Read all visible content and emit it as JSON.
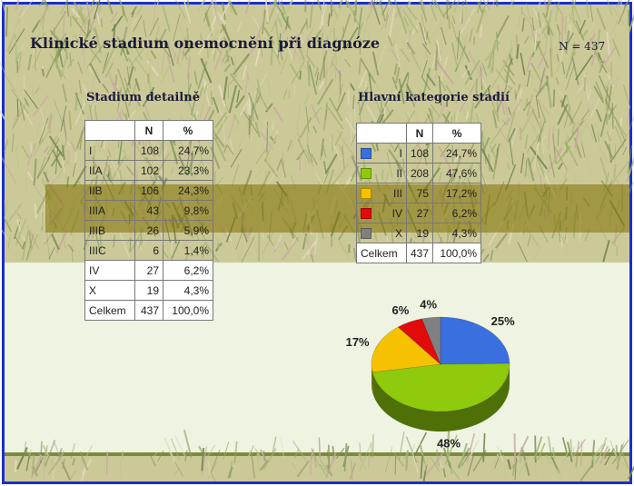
{
  "title": "Klinické stadium onemocnění při diagnóze",
  "n_total": "N = 437",
  "left_table": {
    "heading": "Stadium detailně",
    "headers": [
      "",
      "N",
      "%"
    ],
    "rows": [
      {
        "label": "I",
        "n": "108",
        "pct": "24,7%"
      },
      {
        "label": "IIA",
        "n": "102",
        "pct": "23,3%"
      },
      {
        "label": "IIB",
        "n": "106",
        "pct": "24,3%"
      },
      {
        "label": "IIIA",
        "n": "43",
        "pct": "9,8%"
      },
      {
        "label": "IIIB",
        "n": "26",
        "pct": "5,9%"
      },
      {
        "label": "IIIC",
        "n": "6",
        "pct": "1,4%"
      },
      {
        "label": "IV",
        "n": "27",
        "pct": "6,2%"
      },
      {
        "label": "X",
        "n": "19",
        "pct": "4,3%"
      },
      {
        "label": "Celkem",
        "n": "437",
        "pct": "100,0%"
      }
    ]
  },
  "right_table": {
    "heading": "Hlavní kategorie stadií",
    "headers": [
      "",
      "N",
      "%"
    ],
    "rows": [
      {
        "label": "I",
        "n": "108",
        "pct": "24,7%",
        "color": "#3a6fe0"
      },
      {
        "label": "II",
        "n": "208",
        "pct": "47,6%",
        "color": "#8fca0c"
      },
      {
        "label": "III",
        "n": "75",
        "pct": "17,2%",
        "color": "#f6c200"
      },
      {
        "label": "IV",
        "n": "27",
        "pct": "6,2%",
        "color": "#e20a0a"
      },
      {
        "label": "X",
        "n": "19",
        "pct": "4,3%",
        "color": "#808080"
      },
      {
        "label": "Celkem",
        "n": "437",
        "pct": "100,0%",
        "color": ""
      }
    ]
  },
  "chart_data": {
    "type": "pie",
    "categories": [
      "I",
      "II",
      "III",
      "IV",
      "X"
    ],
    "values": [
      108,
      208,
      75,
      27,
      19
    ],
    "labels": [
      "25%",
      "48%",
      "17%",
      "6%",
      "4%"
    ],
    "colors": [
      "#3a6fe0",
      "#8fca0c",
      "#f6c200",
      "#e20a0a",
      "#808080"
    ]
  }
}
